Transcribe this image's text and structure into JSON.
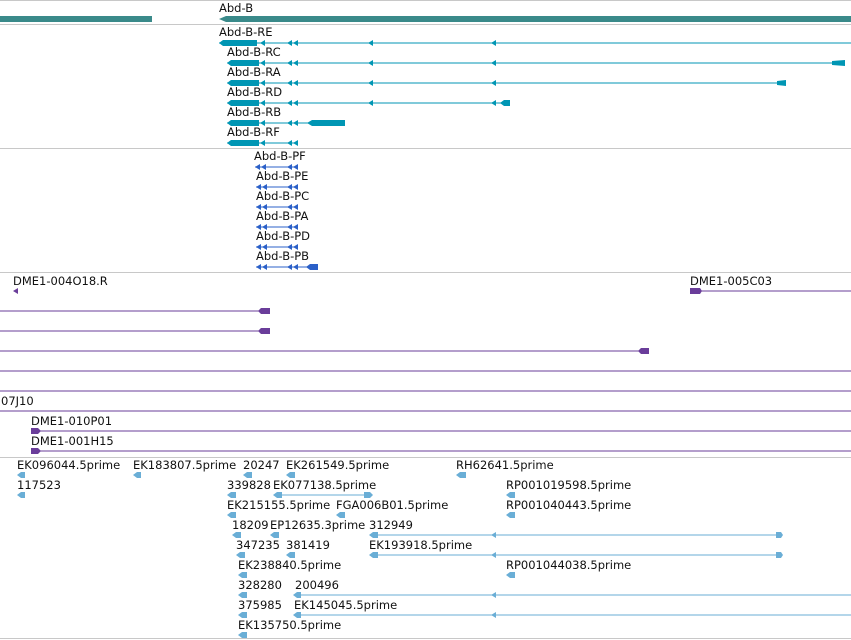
{
  "gene_track": {
    "gene_label": "Abd-B",
    "color": "#3a8a8a"
  },
  "transcripts": {
    "labels": [
      "Abd-B-RE",
      "Abd-B-RC",
      "Abd-B-RA",
      "Abd-B-RD",
      "Abd-B-RB",
      "Abd-B-RF"
    ],
    "color": "#0096b4"
  },
  "proteins": {
    "labels": [
      "Abd-B-PF",
      "Abd-B-PE",
      "Abd-B-PC",
      "Abd-B-PA",
      "Abd-B-PD",
      "Abd-B-PB"
    ],
    "color": "#2b60c8"
  },
  "clones": {
    "labels": [
      "DME1-004O18.R",
      "DME1-005C03",
      "07J10",
      "DME1-010P01",
      "DME1-001H15"
    ],
    "color": "#6a3d9a"
  },
  "ests": {
    "labels": [
      "EK096044.5prime",
      "EK183807.5prime",
      "20247",
      "EK261549.5prime",
      "RH62641.5prime",
      "117523",
      "339828",
      "EK077138.5prime",
      "RP001019598.5prime",
      "EK215155.5prime",
      "FGA006B01.5prime",
      "RP001040443.5prime",
      "18209",
      "EP12635.3prime",
      "312949",
      "347235",
      "381419",
      "EK193918.5prime",
      "EK238840.5prime",
      "RP001044038.5prime",
      "328280",
      "200496",
      "375985",
      "EK145045.5prime",
      "EK135750.5prime"
    ],
    "color": "#6aaed6"
  }
}
